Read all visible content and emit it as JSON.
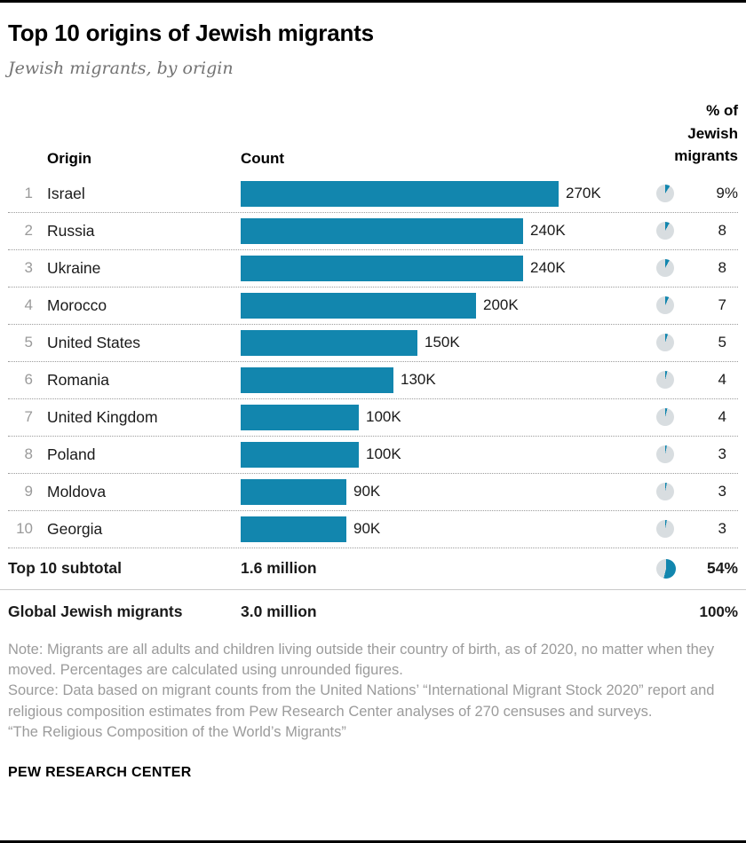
{
  "header": {
    "title": "Top 10 origins of Jewish migrants",
    "subtitle": "Jewish migrants, by origin"
  },
  "table": {
    "col_origin": "Origin",
    "col_count": "Count",
    "col_pct": "% of\nJewish\nmigrants"
  },
  "chart_data": {
    "type": "bar",
    "title": "Top 10 origins of Jewish migrants",
    "subtitle": "Jewish migrants, by origin",
    "categories": [
      "Israel",
      "Russia",
      "Ukraine",
      "Morocco",
      "United States",
      "Romania",
      "United Kingdom",
      "Poland",
      "Moldova",
      "Georgia"
    ],
    "values": [
      270000,
      240000,
      240000,
      200000,
      150000,
      130000,
      100000,
      100000,
      90000,
      90000
    ],
    "count_labels": [
      "270K",
      "240K",
      "240K",
      "200K",
      "150K",
      "130K",
      "100K",
      "100K",
      "90K",
      "90K"
    ],
    "percent_values": [
      9,
      8,
      8,
      7,
      5,
      4,
      4,
      3,
      3,
      3
    ],
    "percent_labels": [
      "9%",
      "8",
      "8",
      "7",
      "5",
      "4",
      "4",
      "3",
      "3",
      "3"
    ],
    "xlim": [
      0,
      270000
    ],
    "bar_color": "#1286ae",
    "pie_track_color": "#d8dde0",
    "subtotal": {
      "label": "Top 10 subtotal",
      "count_label": "1.6 million",
      "percent": 54,
      "percent_label": "54%"
    },
    "global_total": {
      "label": "Global Jewish migrants",
      "count_label": "3.0 million",
      "percent": 100,
      "percent_label": "100%"
    }
  },
  "footer": {
    "note": "Note: Migrants are all adults and children living outside their country of birth, as of 2020, no matter when they moved. Percentages are calculated using unrounded figures.",
    "source": "Source: Data based on migrant counts from the United Nations’ “International Migrant Stock 2020” report and religious composition estimates from Pew Research Center analyses of 270 censuses and surveys.",
    "report": "“The Religious Composition of the World’s Migrants”",
    "brand": "PEW RESEARCH CENTER"
  }
}
